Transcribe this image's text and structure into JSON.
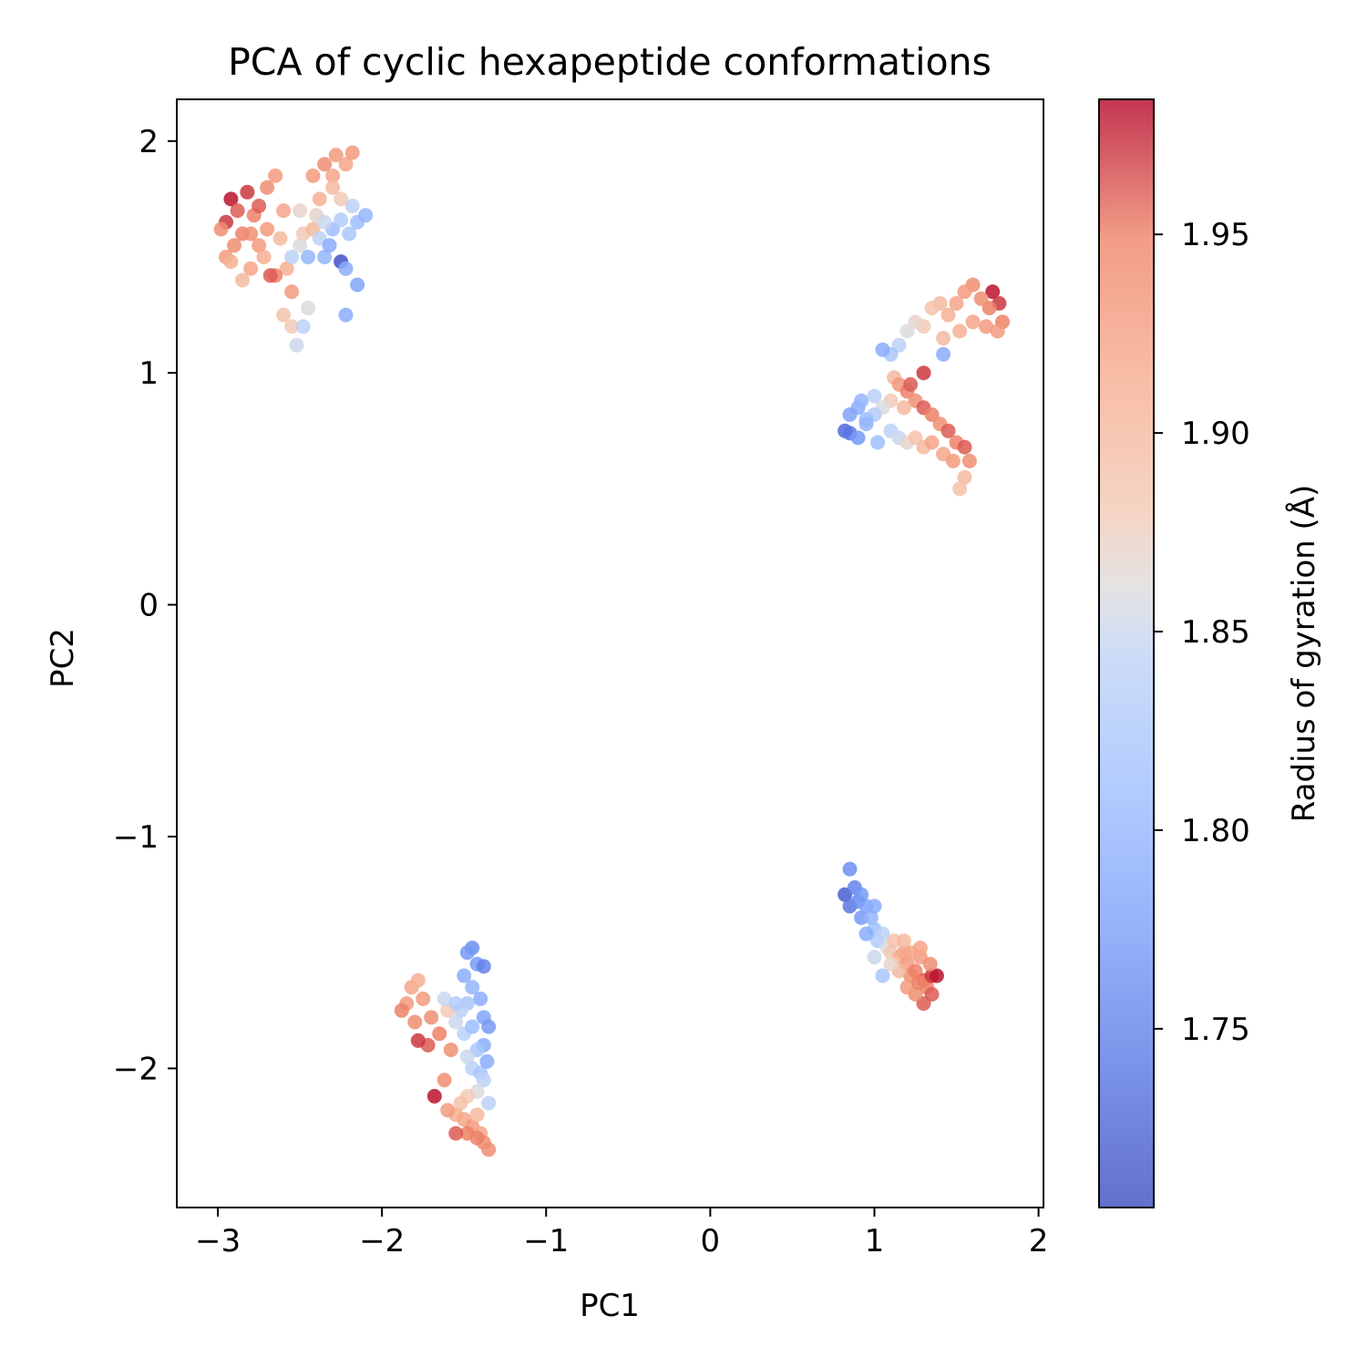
{
  "chart_data": {
    "type": "scatter",
    "title": "PCA of cyclic hexapeptide conformations",
    "xlabel": "PC1",
    "ylabel": "PC2",
    "xlim": [
      -3.25,
      2.03
    ],
    "ylim": [
      -2.6,
      2.18
    ],
    "xticks": [
      -3,
      -2,
      -1,
      0,
      1,
      2
    ],
    "xtick_labels": [
      "−3",
      "−2",
      "−1",
      "0",
      "1",
      "2"
    ],
    "yticks": [
      -2,
      -1,
      0,
      1,
      2
    ],
    "ytick_labels": [
      "−2",
      "−1",
      "0",
      "1",
      "2"
    ],
    "grid": false,
    "colormap": "coolwarm",
    "colorbar": {
      "label": "Radius of gyration (Å)",
      "range": [
        1.705,
        1.984
      ],
      "ticks": [
        1.75,
        1.8,
        1.85,
        1.9,
        1.95
      ],
      "tick_labels": [
        "1.75",
        "1.80",
        "1.85",
        "1.90",
        "1.95"
      ]
    },
    "clusters": [
      {
        "region": "top-left",
        "points": [
          [
            -2.95,
            1.65,
            1.97
          ],
          [
            -2.92,
            1.75,
            1.98
          ],
          [
            -2.88,
            1.7,
            1.96
          ],
          [
            -2.85,
            1.6,
            1.95
          ],
          [
            -2.9,
            1.55,
            1.94
          ],
          [
            -2.95,
            1.5,
            1.93
          ],
          [
            -2.8,
            1.45,
            1.92
          ],
          [
            -2.75,
            1.55,
            1.93
          ],
          [
            -2.82,
            1.78,
            1.97
          ],
          [
            -2.78,
            1.68,
            1.95
          ],
          [
            -2.7,
            1.62,
            1.93
          ],
          [
            -2.72,
            1.5,
            1.91
          ],
          [
            -2.85,
            1.4,
            1.9
          ],
          [
            -2.7,
            1.8,
            1.94
          ],
          [
            -2.65,
            1.85,
            1.93
          ],
          [
            -2.6,
            1.7,
            1.92
          ],
          [
            -2.62,
            1.58,
            1.9
          ],
          [
            -2.58,
            1.45,
            1.91
          ],
          [
            -2.55,
            1.35,
            1.93
          ],
          [
            -2.65,
            1.42,
            1.95
          ],
          [
            -2.68,
            1.42,
            1.96
          ],
          [
            -2.6,
            1.25,
            1.89
          ],
          [
            -2.55,
            1.2,
            1.88
          ],
          [
            -2.52,
            1.12,
            1.85
          ],
          [
            -2.48,
            1.2,
            1.84
          ],
          [
            -2.45,
            1.28,
            1.86
          ],
          [
            -2.5,
            1.55,
            1.86
          ],
          [
            -2.48,
            1.6,
            1.88
          ],
          [
            -2.42,
            1.62,
            1.9
          ],
          [
            -2.38,
            1.58,
            1.84
          ],
          [
            -2.35,
            1.5,
            1.8
          ],
          [
            -2.32,
            1.55,
            1.79
          ],
          [
            -2.3,
            1.62,
            1.81
          ],
          [
            -2.25,
            1.66,
            1.83
          ],
          [
            -2.2,
            1.6,
            1.82
          ],
          [
            -2.15,
            1.65,
            1.81
          ],
          [
            -2.1,
            1.68,
            1.8
          ],
          [
            -2.18,
            1.72,
            1.84
          ],
          [
            -2.25,
            1.75,
            1.88
          ],
          [
            -2.3,
            1.85,
            1.92
          ],
          [
            -2.35,
            1.9,
            1.94
          ],
          [
            -2.28,
            1.94,
            1.93
          ],
          [
            -2.22,
            1.9,
            1.92
          ],
          [
            -2.18,
            1.95,
            1.93
          ],
          [
            -2.3,
            1.8,
            1.9
          ],
          [
            -2.38,
            1.75,
            1.91
          ],
          [
            -2.42,
            1.85,
            1.93
          ],
          [
            -2.25,
            1.48,
            1.71
          ],
          [
            -2.22,
            1.45,
            1.79
          ],
          [
            -2.15,
            1.38,
            1.78
          ],
          [
            -2.22,
            1.25,
            1.79
          ],
          [
            -2.45,
            1.5,
            1.8
          ],
          [
            -2.92,
            1.48,
            1.91
          ],
          [
            -2.98,
            1.62,
            1.94
          ],
          [
            -2.8,
            1.6,
            1.94
          ],
          [
            -2.75,
            1.72,
            1.96
          ],
          [
            -2.4,
            1.68,
            1.87
          ],
          [
            -2.35,
            1.65,
            1.85
          ],
          [
            -2.5,
            1.7,
            1.87
          ],
          [
            -2.55,
            1.5,
            1.84
          ]
        ]
      },
      {
        "region": "upper-right",
        "points": [
          [
            1.72,
            1.35,
            1.98
          ],
          [
            1.76,
            1.3,
            1.97
          ],
          [
            1.78,
            1.22,
            1.95
          ],
          [
            1.75,
            1.18,
            1.93
          ],
          [
            1.7,
            1.28,
            1.95
          ],
          [
            1.65,
            1.32,
            1.94
          ],
          [
            1.6,
            1.38,
            1.94
          ],
          [
            1.55,
            1.35,
            1.93
          ],
          [
            1.5,
            1.3,
            1.92
          ],
          [
            1.45,
            1.25,
            1.91
          ],
          [
            1.4,
            1.3,
            1.9
          ],
          [
            1.35,
            1.28,
            1.89
          ],
          [
            1.3,
            1.2,
            1.88
          ],
          [
            1.25,
            1.22,
            1.87
          ],
          [
            1.2,
            1.18,
            1.86
          ],
          [
            1.15,
            1.12,
            1.84
          ],
          [
            1.1,
            1.08,
            1.82
          ],
          [
            1.05,
            1.1,
            1.79
          ],
          [
            1.42,
            1.15,
            1.9
          ],
          [
            1.52,
            1.18,
            1.91
          ],
          [
            1.6,
            1.22,
            1.92
          ],
          [
            1.68,
            1.2,
            1.93
          ],
          [
            1.42,
            1.08,
            1.79
          ],
          [
            1.12,
            0.98,
            1.9
          ],
          [
            1.15,
            0.95,
            1.93
          ],
          [
            1.2,
            0.92,
            1.95
          ],
          [
            1.25,
            0.88,
            1.94
          ],
          [
            1.3,
            0.85,
            1.96
          ],
          [
            1.35,
            0.82,
            1.95
          ],
          [
            1.4,
            0.78,
            1.94
          ],
          [
            1.45,
            0.75,
            1.96
          ],
          [
            1.5,
            0.7,
            1.95
          ],
          [
            1.55,
            0.68,
            1.96
          ],
          [
            1.58,
            0.62,
            1.94
          ],
          [
            1.55,
            0.55,
            1.9
          ],
          [
            1.52,
            0.5,
            1.89
          ],
          [
            1.3,
            1.0,
            1.97
          ],
          [
            1.22,
            0.95,
            1.96
          ],
          [
            1.18,
            0.85,
            1.9
          ],
          [
            1.1,
            0.88,
            1.88
          ],
          [
            1.05,
            0.85,
            1.86
          ],
          [
            1.0,
            0.82,
            1.83
          ],
          [
            0.95,
            0.8,
            1.81
          ],
          [
            0.9,
            0.85,
            1.79
          ],
          [
            0.85,
            0.82,
            1.78
          ],
          [
            0.82,
            0.75,
            1.73
          ],
          [
            0.85,
            0.74,
            1.74
          ],
          [
            0.9,
            0.72,
            1.77
          ],
          [
            0.95,
            0.78,
            1.8
          ],
          [
            1.02,
            0.7,
            1.81
          ],
          [
            1.1,
            0.75,
            1.84
          ],
          [
            1.15,
            0.72,
            1.85
          ],
          [
            1.2,
            0.7,
            1.87
          ],
          [
            1.25,
            0.72,
            1.89
          ],
          [
            1.3,
            0.68,
            1.9
          ],
          [
            1.35,
            0.7,
            1.92
          ],
          [
            1.42,
            0.65,
            1.92
          ],
          [
            1.48,
            0.62,
            1.93
          ],
          [
            0.92,
            0.88,
            1.8
          ],
          [
            1.0,
            0.9,
            1.84
          ]
        ]
      },
      {
        "region": "lower-right",
        "points": [
          [
            0.82,
            -1.25,
            1.72
          ],
          [
            0.85,
            -1.3,
            1.74
          ],
          [
            0.88,
            -1.22,
            1.75
          ],
          [
            0.9,
            -1.28,
            1.76
          ],
          [
            0.92,
            -1.35,
            1.77
          ],
          [
            0.85,
            -1.14,
            1.76
          ],
          [
            0.95,
            -1.3,
            1.78
          ],
          [
            0.98,
            -1.35,
            1.8
          ],
          [
            1.0,
            -1.4,
            1.81
          ],
          [
            1.02,
            -1.45,
            1.83
          ],
          [
            1.05,
            -1.42,
            1.84
          ],
          [
            1.08,
            -1.48,
            1.86
          ],
          [
            1.1,
            -1.5,
            1.88
          ],
          [
            1.12,
            -1.45,
            1.89
          ],
          [
            1.15,
            -1.52,
            1.91
          ],
          [
            1.18,
            -1.5,
            1.92
          ],
          [
            1.2,
            -1.55,
            1.93
          ],
          [
            1.22,
            -1.6,
            1.94
          ],
          [
            1.25,
            -1.58,
            1.95
          ],
          [
            1.28,
            -1.52,
            1.93
          ],
          [
            1.3,
            -1.62,
            1.96
          ],
          [
            1.32,
            -1.65,
            1.95
          ],
          [
            1.35,
            -1.6,
            1.97
          ],
          [
            1.38,
            -1.6,
            1.98
          ],
          [
            1.3,
            -1.72,
            1.96
          ],
          [
            1.25,
            -1.68,
            1.94
          ],
          [
            1.2,
            -1.65,
            1.93
          ],
          [
            1.15,
            -1.58,
            1.9
          ],
          [
            1.1,
            -1.55,
            1.87
          ],
          [
            1.05,
            -1.6,
            1.82
          ],
          [
            1.0,
            -1.52,
            1.85
          ],
          [
            0.95,
            -1.42,
            1.79
          ],
          [
            0.92,
            -1.25,
            1.77
          ],
          [
            1.0,
            -1.3,
            1.79
          ],
          [
            1.28,
            -1.48,
            1.92
          ],
          [
            1.34,
            -1.55,
            1.94
          ],
          [
            1.27,
            -1.63,
            1.95
          ],
          [
            1.35,
            -1.68,
            1.96
          ],
          [
            1.22,
            -1.5,
            1.92
          ],
          [
            1.18,
            -1.45,
            1.9
          ]
        ]
      },
      {
        "region": "bottom-center-left",
        "points": [
          [
            -1.45,
            -1.48,
            1.76
          ],
          [
            -1.42,
            -1.55,
            1.77
          ],
          [
            -1.38,
            -1.56,
            1.75
          ],
          [
            -1.5,
            -1.6,
            1.79
          ],
          [
            -1.45,
            -1.65,
            1.8
          ],
          [
            -1.4,
            -1.7,
            1.79
          ],
          [
            -1.48,
            -1.72,
            1.82
          ],
          [
            -1.52,
            -1.75,
            1.84
          ],
          [
            -1.55,
            -1.8,
            1.85
          ],
          [
            -1.5,
            -1.85,
            1.84
          ],
          [
            -1.45,
            -1.82,
            1.81
          ],
          [
            -1.38,
            -1.78,
            1.78
          ],
          [
            -1.35,
            -1.82,
            1.77
          ],
          [
            -1.38,
            -1.9,
            1.79
          ],
          [
            -1.42,
            -1.92,
            1.82
          ],
          [
            -1.48,
            -1.95,
            1.85
          ],
          [
            -1.45,
            -2.0,
            1.84
          ],
          [
            -1.4,
            -2.02,
            1.82
          ],
          [
            -1.36,
            -1.97,
            1.79
          ],
          [
            -1.38,
            -2.05,
            1.84
          ],
          [
            -1.42,
            -2.1,
            1.86
          ],
          [
            -1.48,
            -2.12,
            1.88
          ],
          [
            -1.52,
            -2.15,
            1.89
          ],
          [
            -1.55,
            -2.2,
            1.91
          ],
          [
            -1.5,
            -2.22,
            1.92
          ],
          [
            -1.45,
            -2.25,
            1.93
          ],
          [
            -1.4,
            -2.28,
            1.92
          ],
          [
            -1.38,
            -2.32,
            1.94
          ],
          [
            -1.42,
            -2.3,
            1.95
          ],
          [
            -1.48,
            -2.28,
            1.95
          ],
          [
            -1.55,
            -2.28,
            1.96
          ],
          [
            -1.6,
            -2.18,
            1.93
          ],
          [
            -1.62,
            -2.05,
            1.94
          ],
          [
            -1.68,
            -2.12,
            1.98
          ],
          [
            -1.72,
            -1.9,
            1.96
          ],
          [
            -1.78,
            -1.88,
            1.97
          ],
          [
            -1.8,
            -1.8,
            1.94
          ],
          [
            -1.85,
            -1.72,
            1.93
          ],
          [
            -1.82,
            -1.65,
            1.92
          ],
          [
            -1.78,
            -1.62,
            1.91
          ],
          [
            -1.75,
            -1.7,
            1.93
          ],
          [
            -1.7,
            -1.78,
            1.94
          ],
          [
            -1.65,
            -1.85,
            1.95
          ],
          [
            -1.6,
            -1.75,
            1.88
          ],
          [
            -1.62,
            -1.7,
            1.85
          ],
          [
            -1.55,
            -1.72,
            1.83
          ],
          [
            -1.35,
            -2.15,
            1.84
          ],
          [
            -1.35,
            -2.35,
            1.94
          ],
          [
            -1.42,
            -2.2,
            1.9
          ],
          [
            -1.58,
            -1.92,
            1.94
          ],
          [
            -1.88,
            -1.75,
            1.95
          ],
          [
            -1.48,
            -1.5,
            1.77
          ]
        ]
      }
    ]
  }
}
